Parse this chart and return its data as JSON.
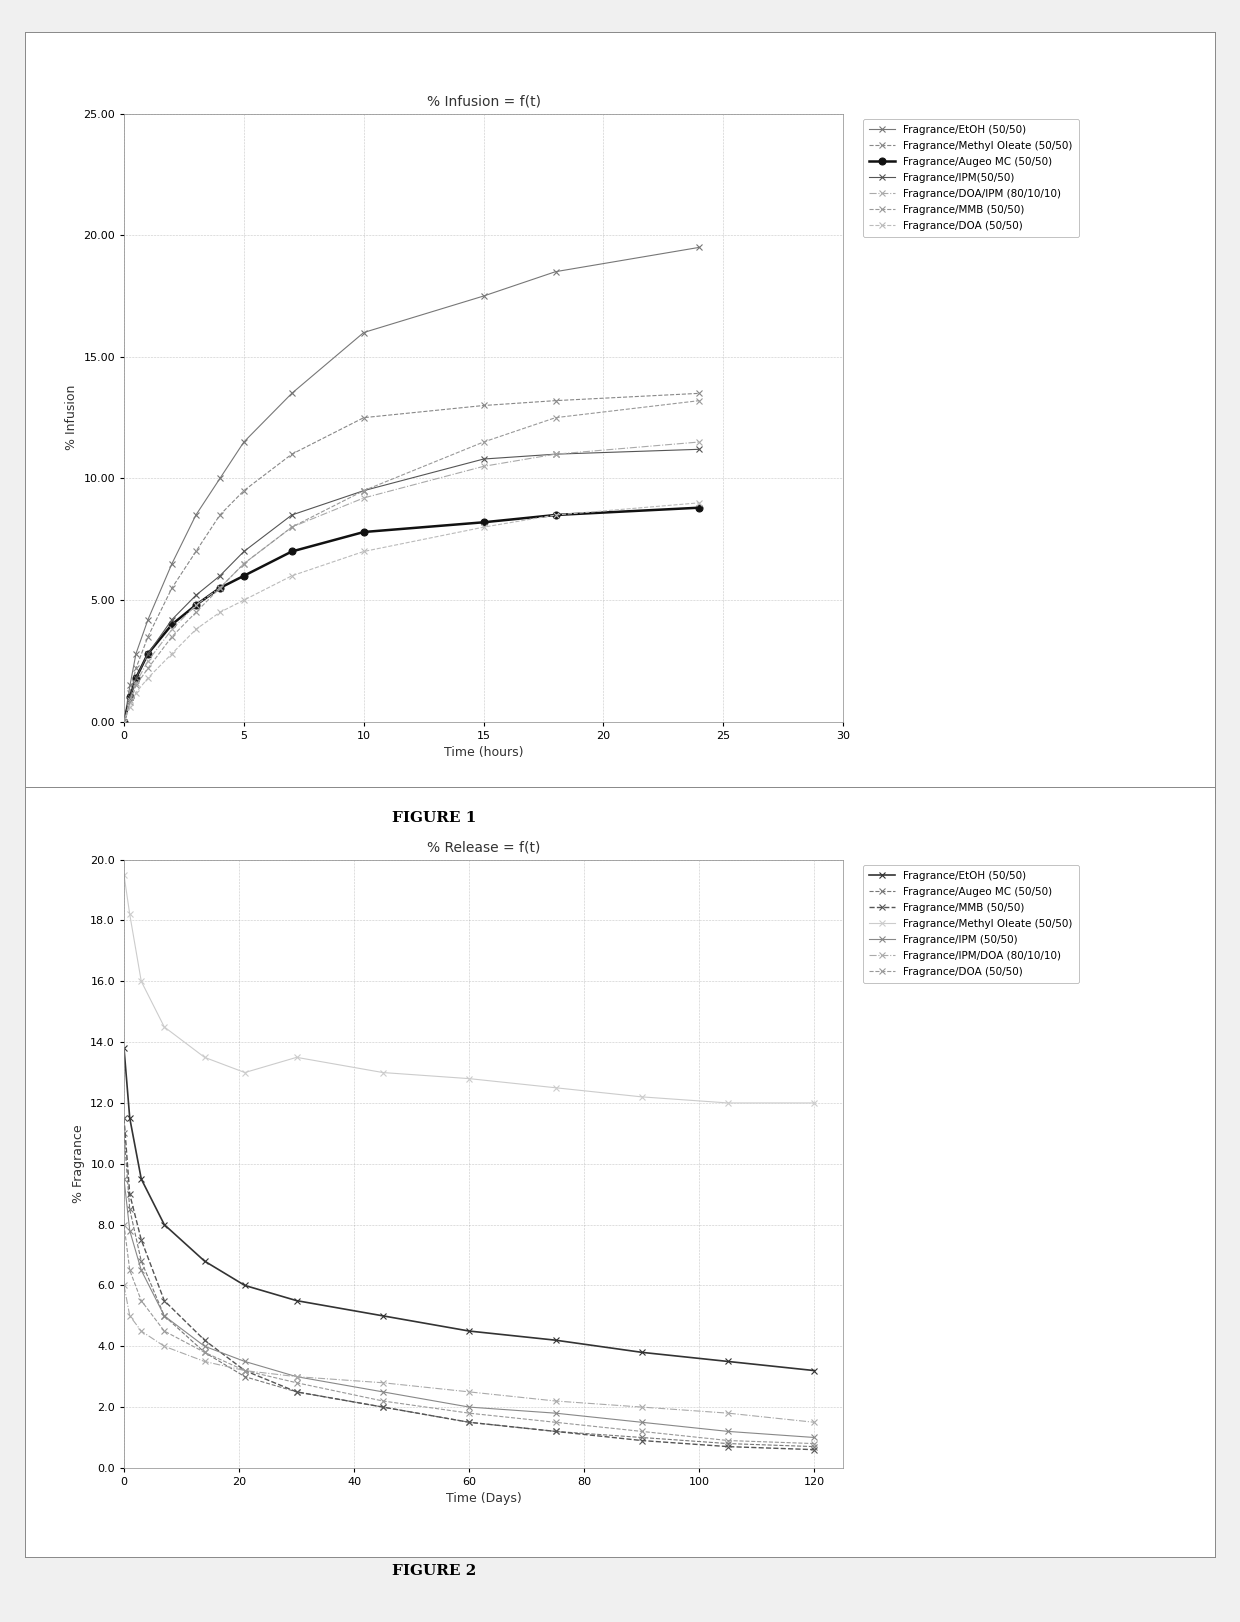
{
  "fig1": {
    "title": "% Infusion = f(t)",
    "xlabel": "Time (hours)",
    "ylabel": "% Infusion",
    "xlim": [
      0,
      30
    ],
    "ylim": [
      0,
      25
    ],
    "yticks": [
      0.0,
      5.0,
      10.0,
      15.0,
      20.0,
      25.0
    ],
    "ytick_labels": [
      "0.00",
      "5.00",
      "10.00",
      "15.00",
      "20.00",
      "25.00"
    ],
    "xticks": [
      0,
      5,
      10,
      15,
      20,
      25,
      30
    ],
    "figure_label": "FIGURE 1",
    "series": [
      {
        "label": "Fragrance/EtOH (50/50)",
        "x": [
          0,
          0.25,
          0.5,
          1,
          2,
          3,
          4,
          5,
          7,
          10,
          15,
          18,
          24
        ],
        "y": [
          0,
          1.5,
          2.8,
          4.2,
          6.5,
          8.5,
          10.0,
          11.5,
          13.5,
          16.0,
          17.5,
          18.5,
          19.5
        ],
        "color": "#777777",
        "linestyle": "-",
        "marker": "x",
        "linewidth": 0.8,
        "markersize": 4
      },
      {
        "label": "Fragrance/Methyl Oleate (50/50)",
        "x": [
          0,
          0.25,
          0.5,
          1,
          2,
          3,
          4,
          5,
          7,
          10,
          15,
          18,
          24
        ],
        "y": [
          0,
          1.2,
          2.2,
          3.5,
          5.5,
          7.0,
          8.5,
          9.5,
          11.0,
          12.5,
          13.0,
          13.2,
          13.5
        ],
        "color": "#888888",
        "linestyle": "--",
        "marker": "x",
        "linewidth": 0.8,
        "markersize": 4
      },
      {
        "label": "Fragrance/Augeo MC (50/50)",
        "x": [
          0,
          0.25,
          0.5,
          1,
          2,
          3,
          4,
          5,
          7,
          10,
          15,
          18,
          24
        ],
        "y": [
          0,
          1.0,
          1.8,
          2.8,
          4.0,
          4.8,
          5.5,
          6.0,
          7.0,
          7.8,
          8.2,
          8.5,
          8.8
        ],
        "color": "#111111",
        "linestyle": "-",
        "marker": "o",
        "linewidth": 1.8,
        "markersize": 5
      },
      {
        "label": "Fragrance/IPM(50/50)",
        "x": [
          0,
          0.25,
          0.5,
          1,
          2,
          3,
          4,
          5,
          7,
          10,
          15,
          18,
          24
        ],
        "y": [
          0,
          1.0,
          1.8,
          2.8,
          4.2,
          5.2,
          6.0,
          7.0,
          8.5,
          9.5,
          10.8,
          11.0,
          11.2
        ],
        "color": "#555555",
        "linestyle": "-",
        "marker": "x",
        "linewidth": 0.8,
        "markersize": 4
      },
      {
        "label": "Fragrance/DOA/IPM (80/10/10)",
        "x": [
          0,
          0.25,
          0.5,
          1,
          2,
          3,
          4,
          5,
          7,
          10,
          15,
          18,
          24
        ],
        "y": [
          0,
          0.9,
          1.6,
          2.5,
          3.8,
          4.8,
          5.5,
          6.5,
          8.0,
          9.2,
          10.5,
          11.0,
          11.5
        ],
        "color": "#aaaaaa",
        "linestyle": "-.",
        "marker": "x",
        "linewidth": 0.8,
        "markersize": 4
      },
      {
        "label": "Fragrance/MMB (50/50)",
        "x": [
          0,
          0.25,
          0.5,
          1,
          2,
          3,
          4,
          5,
          7,
          10,
          15,
          18,
          24
        ],
        "y": [
          0,
          0.8,
          1.5,
          2.2,
          3.5,
          4.5,
          5.5,
          6.5,
          8.0,
          9.5,
          11.5,
          12.5,
          13.2
        ],
        "color": "#999999",
        "linestyle": "--",
        "marker": "x",
        "linewidth": 0.8,
        "markersize": 4
      },
      {
        "label": "Fragrance/DOA (50/50)",
        "x": [
          0,
          0.25,
          0.5,
          1,
          2,
          3,
          4,
          5,
          7,
          10,
          15,
          18,
          24
        ],
        "y": [
          0,
          0.6,
          1.2,
          1.8,
          2.8,
          3.8,
          4.5,
          5.0,
          6.0,
          7.0,
          8.0,
          8.5,
          9.0
        ],
        "color": "#bbbbbb",
        "linestyle": "--",
        "marker": "x",
        "linewidth": 0.8,
        "markersize": 4
      }
    ]
  },
  "fig2": {
    "title": "% Release = f(t)",
    "xlabel": "Time (Days)",
    "ylabel": "% Fragrance",
    "xlim": [
      0,
      125
    ],
    "ylim": [
      0,
      20
    ],
    "yticks": [
      0.0,
      2.0,
      4.0,
      6.0,
      8.0,
      10.0,
      12.0,
      14.0,
      16.0,
      18.0,
      20.0
    ],
    "ytick_labels": [
      "0.0",
      "2.0",
      "4.0",
      "6.0",
      "8.0",
      "10.0",
      "12.0",
      "14.0",
      "16.0",
      "18.0",
      "20.0"
    ],
    "xticks": [
      0,
      20,
      40,
      60,
      80,
      100,
      120
    ],
    "figure_label": "FIGURE 2",
    "series": [
      {
        "label": "Fragrance/EtOH (50/50)",
        "x": [
          0,
          1,
          3,
          7,
          14,
          21,
          30,
          45,
          60,
          75,
          90,
          105,
          120
        ],
        "y": [
          13.8,
          11.5,
          9.5,
          8.0,
          6.8,
          6.0,
          5.5,
          5.0,
          4.5,
          4.2,
          3.8,
          3.5,
          3.2
        ],
        "color": "#333333",
        "linestyle": "-",
        "marker": "x",
        "linewidth": 1.2,
        "markersize": 4
      },
      {
        "label": "Fragrance/Augeo MC (50/50)",
        "x": [
          0,
          1,
          3,
          7,
          14,
          21,
          30,
          45,
          60,
          75,
          90,
          105,
          120
        ],
        "y": [
          11.0,
          8.5,
          6.8,
          5.0,
          3.8,
          3.0,
          2.5,
          2.0,
          1.5,
          1.2,
          1.0,
          0.8,
          0.7
        ],
        "color": "#777777",
        "linestyle": "--",
        "marker": "x",
        "linewidth": 0.8,
        "markersize": 4
      },
      {
        "label": "Fragrance/MMB (50/50)",
        "x": [
          0,
          1,
          3,
          7,
          14,
          21,
          30,
          45,
          60,
          75,
          90,
          105,
          120
        ],
        "y": [
          11.5,
          9.0,
          7.5,
          5.5,
          4.2,
          3.2,
          2.5,
          2.0,
          1.5,
          1.2,
          0.9,
          0.7,
          0.6
        ],
        "color": "#555555",
        "linestyle": "--",
        "marker": "x",
        "linewidth": 1.0,
        "markersize": 4
      },
      {
        "label": "Fragrance/Methyl Oleate (50/50)",
        "x": [
          0,
          1,
          3,
          7,
          14,
          21,
          30,
          45,
          60,
          75,
          90,
          105,
          120
        ],
        "y": [
          19.5,
          18.2,
          16.0,
          14.5,
          13.5,
          13.0,
          13.5,
          13.0,
          12.8,
          12.5,
          12.2,
          12.0,
          12.0
        ],
        "color": "#cccccc",
        "linestyle": "-",
        "marker": "x",
        "linewidth": 0.8,
        "markersize": 4
      },
      {
        "label": "Fragrance/IPM (50/50)",
        "x": [
          0,
          1,
          3,
          7,
          14,
          21,
          30,
          45,
          60,
          75,
          90,
          105,
          120
        ],
        "y": [
          9.5,
          7.8,
          6.5,
          5.0,
          4.0,
          3.5,
          3.0,
          2.5,
          2.0,
          1.8,
          1.5,
          1.2,
          1.0
        ],
        "color": "#888888",
        "linestyle": "-",
        "marker": "x",
        "linewidth": 0.8,
        "markersize": 4
      },
      {
        "label": "Fragrance/IPM/DOA (80/10/10)",
        "x": [
          0,
          1,
          3,
          7,
          14,
          21,
          30,
          45,
          60,
          75,
          90,
          105,
          120
        ],
        "y": [
          6.0,
          5.0,
          4.5,
          4.0,
          3.5,
          3.2,
          3.0,
          2.8,
          2.5,
          2.2,
          2.0,
          1.8,
          1.5
        ],
        "color": "#aaaaaa",
        "linestyle": "-.",
        "marker": "x",
        "linewidth": 0.8,
        "markersize": 4
      },
      {
        "label": "Fragrance/DOA (50/50)",
        "x": [
          0,
          1,
          3,
          7,
          14,
          21,
          30,
          45,
          60,
          75,
          90,
          105,
          120
        ],
        "y": [
          8.0,
          6.5,
          5.5,
          4.5,
          3.8,
          3.2,
          2.8,
          2.2,
          1.8,
          1.5,
          1.2,
          0.9,
          0.8
        ],
        "color": "#999999",
        "linestyle": "--",
        "marker": "x",
        "linewidth": 0.8,
        "markersize": 4
      }
    ]
  },
  "bg_color": "#f0f0f0",
  "chart_bg": "#ffffff",
  "grid_color": "#999999",
  "grid_style": ":",
  "border_color": "#aaaaaa"
}
